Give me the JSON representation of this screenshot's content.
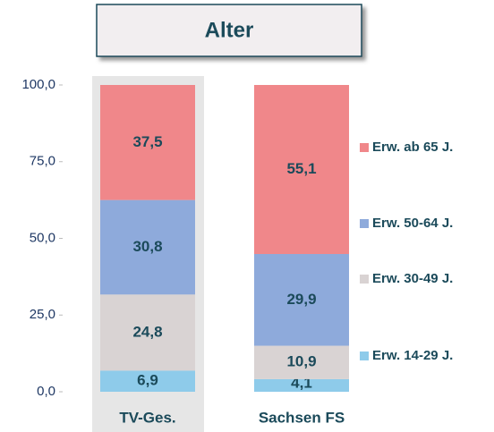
{
  "chart_data": {
    "type": "stacked_bar",
    "title": "Alter",
    "categories": [
      "TV-Ges.",
      "Sachsen FS"
    ],
    "series": [
      {
        "name": "Erw. 14-29 J.",
        "color": "#8ecbea",
        "values": [
          6.9,
          4.1
        ],
        "value_labels": [
          "6,9",
          "4,1"
        ]
      },
      {
        "name": "Erw. 30-49 J.",
        "color": "#d9d3d3",
        "values": [
          24.8,
          10.9
        ],
        "value_labels": [
          "24,8",
          "10,9"
        ]
      },
      {
        "name": "Erw. 50-64 J.",
        "color": "#8eaadb",
        "values": [
          30.8,
          29.9
        ],
        "value_labels": [
          "30,8",
          "29,9"
        ]
      },
      {
        "name": "Erw. ab 65 J.",
        "color": "#f0878a",
        "values": [
          37.5,
          55.1
        ],
        "value_labels": [
          "37,5",
          "55,1"
        ]
      }
    ],
    "ylim": [
      0,
      100
    ],
    "yticks": [
      {
        "value": 0,
        "label": "0,0"
      },
      {
        "value": 25,
        "label": "25,0"
      },
      {
        "value": 50,
        "label": "50,0"
      },
      {
        "value": 75,
        "label": "75,0"
      },
      {
        "value": 100,
        "label": "100,0"
      }
    ],
    "legend": "right"
  }
}
